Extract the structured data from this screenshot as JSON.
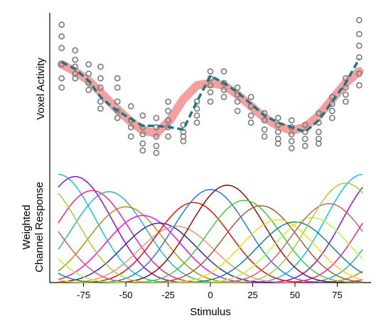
{
  "chart_data": [
    {
      "type": "scatter",
      "panel": "top",
      "ylabel": "Voxel Activity",
      "xlim": [
        -95,
        95
      ],
      "ylim": [
        -1.6,
        1.6
      ],
      "colors": {
        "points": "#7a7a7a",
        "true_curve": "#f08080",
        "fit_curve": "#1a7a80"
      },
      "scatter_points": [
        {
          "x": -88,
          "y": [
            1.45,
            1.2,
            0.95,
            0.6,
            0.3,
            0.1
          ]
        },
        {
          "x": -80,
          "y": [
            0.9,
            0.7,
            0.55,
            0.4,
            0.3
          ]
        },
        {
          "x": -72,
          "y": [
            0.6,
            0.4,
            0.2,
            0.05
          ]
        },
        {
          "x": -65,
          "y": [
            0.55,
            0.3,
            0.1,
            -0.2,
            -0.35
          ]
        },
        {
          "x": -55,
          "y": [
            0.3,
            0.1,
            -0.2,
            -0.4,
            -0.55
          ]
        },
        {
          "x": -47,
          "y": [
            -0.3,
            -0.6,
            -0.75,
            -0.95
          ]
        },
        {
          "x": -40,
          "y": [
            -0.5,
            -0.75,
            -0.9,
            -1.1,
            -1.25
          ]
        },
        {
          "x": -32,
          "y": [
            -0.55,
            -0.75,
            -0.95,
            -1.15,
            -1.3
          ]
        },
        {
          "x": -25,
          "y": [
            -0.2,
            -0.4,
            -0.6,
            -0.75,
            -0.95
          ]
        },
        {
          "x": -16,
          "y": [
            -0.7,
            -0.85,
            -0.95,
            -1.05
          ]
        },
        {
          "x": -8,
          "y": [
            -0.2,
            -0.35,
            -0.5,
            -0.65
          ]
        },
        {
          "x": 0,
          "y": [
            0.45,
            0.3,
            0.15,
            0.0,
            -0.2
          ]
        },
        {
          "x": 8,
          "y": [
            0.45,
            0.2,
            0.05,
            -0.1
          ]
        },
        {
          "x": 16,
          "y": [
            0.1,
            -0.05,
            -0.2,
            -0.4
          ]
        },
        {
          "x": 24,
          "y": [
            -0.1,
            -0.3,
            -0.5,
            -0.65
          ]
        },
        {
          "x": 32,
          "y": [
            -0.45,
            -0.6,
            -0.8,
            -0.95
          ]
        },
        {
          "x": 40,
          "y": [
            -0.55,
            -0.7,
            -0.85,
            -1.0,
            -1.1
          ]
        },
        {
          "x": 48,
          "y": [
            -0.6,
            -0.75,
            -0.9,
            -1.05,
            -1.2
          ]
        },
        {
          "x": 56,
          "y": [
            -0.7,
            -0.85,
            -1.0,
            -1.15
          ]
        },
        {
          "x": 64,
          "y": [
            -0.45,
            -0.65,
            -0.85,
            -1.0,
            -1.1
          ]
        },
        {
          "x": 72,
          "y": [
            -0.1,
            -0.25,
            -0.4,
            -0.55
          ]
        },
        {
          "x": 80,
          "y": [
            0.3,
            0.1,
            -0.05,
            -0.2
          ]
        },
        {
          "x": 88,
          "y": [
            1.55,
            1.25,
            1.0,
            0.75,
            0.4,
            0.15
          ]
        }
      ],
      "true_curve": {
        "x": [
          -88,
          -80,
          -72,
          -65,
          -57,
          -48,
          -40,
          -32,
          -24,
          -16,
          -8,
          0,
          8,
          16,
          24,
          32,
          40,
          48,
          56,
          64,
          72,
          80,
          88
        ],
        "y": [
          0.6,
          0.45,
          0.25,
          0.0,
          -0.3,
          -0.6,
          -0.82,
          -0.88,
          -0.6,
          -0.15,
          0.15,
          0.2,
          0.15,
          -0.05,
          -0.3,
          -0.55,
          -0.72,
          -0.82,
          -0.75,
          -0.5,
          -0.15,
          0.2,
          0.45
        ]
      },
      "fit_curve": {
        "x": [
          -88,
          -80,
          -72,
          -65,
          -57,
          -48,
          -40,
          -32,
          -24,
          -16,
          -8,
          0,
          8,
          16,
          24,
          32,
          40,
          48,
          56,
          64,
          72,
          80,
          88
        ],
        "y": [
          0.65,
          0.5,
          0.25,
          -0.1,
          -0.35,
          -0.55,
          -0.72,
          -0.72,
          -0.75,
          -0.8,
          -0.2,
          0.35,
          0.2,
          0.0,
          -0.25,
          -0.5,
          -0.65,
          -0.75,
          -0.85,
          -0.6,
          -0.2,
          0.2,
          0.72
        ]
      }
    },
    {
      "type": "line",
      "panel": "bottom",
      "ylabel": "Weighted\nChannel Response",
      "xlabel": "Stimulus",
      "xticks": [
        "-75",
        "-50",
        "-25",
        "0",
        "25",
        "50",
        "75"
      ],
      "xtick_values": [
        -75,
        -50,
        -25,
        0,
        25,
        50,
        75
      ],
      "xlim": [
        -95,
        95
      ],
      "ylim": [
        0,
        1.05
      ],
      "tuning_period": 180,
      "tuning_exponent": 7,
      "series": [
        {
          "center": -90,
          "amplitude": 1.0,
          "color": "#00bfff"
        },
        {
          "center": -80,
          "amplitude": 0.98,
          "color": "#9400d3"
        },
        {
          "center": -70,
          "amplitude": 0.85,
          "color": "#ff1493"
        },
        {
          "center": -60,
          "amplitude": 0.84,
          "color": "#20b2aa"
        },
        {
          "center": -50,
          "amplitude": 0.7,
          "color": "#b8860b"
        },
        {
          "center": -40,
          "amplitude": 0.62,
          "color": "#ff00ff"
        },
        {
          "center": -30,
          "amplitude": 0.55,
          "color": "#1e1eb4"
        },
        {
          "center": -20,
          "amplitude": 0.52,
          "color": "#ff8c69"
        },
        {
          "center": -10,
          "amplitude": 0.74,
          "color": "#ff0000"
        },
        {
          "center": 0,
          "amplitude": 0.86,
          "color": "#1e6eff"
        },
        {
          "center": 10,
          "amplitude": 0.9,
          "color": "#8b0000"
        },
        {
          "center": 20,
          "amplitude": 0.76,
          "color": "#32cd32"
        },
        {
          "center": 30,
          "amplitude": 0.71,
          "color": "#a0522d"
        },
        {
          "center": 40,
          "amplitude": 0.58,
          "color": "#ffd700"
        },
        {
          "center": 50,
          "amplitude": 0.56,
          "color": "#008080"
        },
        {
          "center": 60,
          "amplitude": 0.6,
          "color": "#adff2f"
        },
        {
          "center": 70,
          "amplitude": 0.73,
          "color": "#cd5c5c"
        },
        {
          "center": 80,
          "amplitude": 0.92,
          "color": "#9acd32"
        }
      ]
    }
  ]
}
